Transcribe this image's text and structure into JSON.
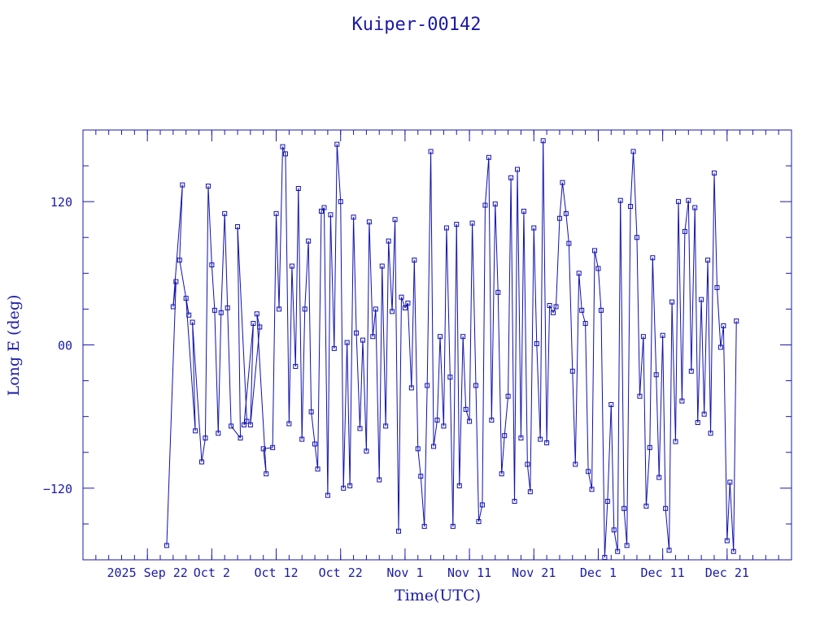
{
  "colors": {
    "axis": "#1a1aa8",
    "series": "#1010b0",
    "background": "#ffffff"
  },
  "chart_data": {
    "type": "scatter",
    "title": "Kuiper-00142",
    "xlabel": "Time(UTC)",
    "ylabel": "Long E (deg)",
    "xlim": [
      "2025-09-12",
      "2025-12-31"
    ],
    "ylim": [
      -180,
      180
    ],
    "grid": false,
    "legend": "none",
    "x_ticks": [
      {
        "date": "2025-09-22",
        "label": "2025 Sep 22"
      },
      {
        "date": "2025-10-02",
        "label": "Oct  2"
      },
      {
        "date": "2025-10-12",
        "label": "Oct 12"
      },
      {
        "date": "2025-10-22",
        "label": "Oct 22"
      },
      {
        "date": "2025-11-01",
        "label": "Nov  1"
      },
      {
        "date": "2025-11-11",
        "label": "Nov 11"
      },
      {
        "date": "2025-11-21",
        "label": "Nov 21"
      },
      {
        "date": "2025-12-01",
        "label": "Dec  1"
      },
      {
        "date": "2025-12-11",
        "label": "Dec 11"
      },
      {
        "date": "2025-12-21",
        "label": "Dec 21"
      }
    ],
    "y_ticks": [
      {
        "value": 120,
        "label": "120"
      },
      {
        "value": 0,
        "label": "00"
      },
      {
        "value": -120,
        "label": "−120"
      }
    ],
    "y_minor_step": 30,
    "series": [
      {
        "marker": "square",
        "line": true,
        "points": [
          {
            "x": "2025-09-25",
            "y": -168
          },
          {
            "x": "2025-09-26",
            "y": 53
          },
          {
            "x": "2025-09-26",
            "y": 32
          },
          {
            "x": "2025-09-27",
            "y": 134
          },
          {
            "x": "2025-09-27",
            "y": 71
          },
          {
            "x": "2025-09-28",
            "y": 25
          },
          {
            "x": "2025-09-28",
            "y": 39
          },
          {
            "x": "2025-09-29",
            "y": -72
          },
          {
            "x": "2025-09-29",
            "y": 19
          },
          {
            "x": "2025-09-30",
            "y": -98
          },
          {
            "x": "2025-10-01",
            "y": -78
          },
          {
            "x": "2025-10-01",
            "y": 133
          },
          {
            "x": "2025-10-02",
            "y": 67
          },
          {
            "x": "2025-10-02",
            "y": 29
          },
          {
            "x": "2025-10-03",
            "y": -74
          },
          {
            "x": "2025-10-03",
            "y": 27
          },
          {
            "x": "2025-10-04",
            "y": 110
          },
          {
            "x": "2025-10-04",
            "y": 31
          },
          {
            "x": "2025-10-05",
            "y": -68
          },
          {
            "x": "2025-10-06",
            "y": -78
          },
          {
            "x": "2025-10-06",
            "y": 99
          },
          {
            "x": "2025-10-07",
            "y": -64
          },
          {
            "x": "2025-10-07",
            "y": -67
          },
          {
            "x": "2025-10-08",
            "y": 18
          },
          {
            "x": "2025-10-08",
            "y": -67
          },
          {
            "x": "2025-10-09",
            "y": 15
          },
          {
            "x": "2025-10-09",
            "y": 26
          },
          {
            "x": "2025-10-10",
            "y": -108
          },
          {
            "x": "2025-10-10",
            "y": -87
          },
          {
            "x": "2025-10-11",
            "y": -86
          },
          {
            "x": "2025-10-12",
            "y": 110
          },
          {
            "x": "2025-10-12",
            "y": 30
          },
          {
            "x": "2025-10-13",
            "y": 166
          },
          {
            "x": "2025-10-13",
            "y": 160
          },
          {
            "x": "2025-10-14",
            "y": -66
          },
          {
            "x": "2025-10-14",
            "y": 66
          },
          {
            "x": "2025-10-15",
            "y": -18
          },
          {
            "x": "2025-10-15",
            "y": 131
          },
          {
            "x": "2025-10-16",
            "y": -79
          },
          {
            "x": "2025-10-16",
            "y": 30
          },
          {
            "x": "2025-10-17",
            "y": 87
          },
          {
            "x": "2025-10-17",
            "y": -56
          },
          {
            "x": "2025-10-18",
            "y": -83
          },
          {
            "x": "2025-10-18",
            "y": -104
          },
          {
            "x": "2025-10-19",
            "y": 112
          },
          {
            "x": "2025-10-19",
            "y": 115
          },
          {
            "x": "2025-10-20",
            "y": -126
          },
          {
            "x": "2025-10-20",
            "y": 109
          },
          {
            "x": "2025-10-21",
            "y": -3
          },
          {
            "x": "2025-10-21",
            "y": 168
          },
          {
            "x": "2025-10-22",
            "y": 120
          },
          {
            "x": "2025-10-22",
            "y": -120
          },
          {
            "x": "2025-10-23",
            "y": 2
          },
          {
            "x": "2025-10-23",
            "y": -118
          },
          {
            "x": "2025-10-24",
            "y": 107
          },
          {
            "x": "2025-10-24",
            "y": 10
          },
          {
            "x": "2025-10-25",
            "y": -70
          },
          {
            "x": "2025-10-25",
            "y": 4
          },
          {
            "x": "2025-10-26",
            "y": -89
          },
          {
            "x": "2025-10-26",
            "y": 103
          },
          {
            "x": "2025-10-27",
            "y": 7
          },
          {
            "x": "2025-10-27",
            "y": 30
          },
          {
            "x": "2025-10-28",
            "y": -113
          },
          {
            "x": "2025-10-28",
            "y": 66
          },
          {
            "x": "2025-10-29",
            "y": -68
          },
          {
            "x": "2025-10-29",
            "y": 87
          },
          {
            "x": "2025-10-30",
            "y": 28
          },
          {
            "x": "2025-10-30",
            "y": 105
          },
          {
            "x": "2025-10-31",
            "y": -156
          },
          {
            "x": "2025-10-31",
            "y": 40
          },
          {
            "x": "2025-11-01",
            "y": 31
          },
          {
            "x": "2025-11-01",
            "y": 35
          },
          {
            "x": "2025-11-02",
            "y": -36
          },
          {
            "x": "2025-11-02",
            "y": 71
          },
          {
            "x": "2025-11-03",
            "y": -87
          },
          {
            "x": "2025-11-03",
            "y": -110
          },
          {
            "x": "2025-11-04",
            "y": -152
          },
          {
            "x": "2025-11-04",
            "y": -34
          },
          {
            "x": "2025-11-05",
            "y": 162
          },
          {
            "x": "2025-11-05",
            "y": -85
          },
          {
            "x": "2025-11-06",
            "y": -63
          },
          {
            "x": "2025-11-06",
            "y": 7
          },
          {
            "x": "2025-11-07",
            "y": -68
          },
          {
            "x": "2025-11-07",
            "y": 98
          },
          {
            "x": "2025-11-08",
            "y": -27
          },
          {
            "x": "2025-11-08",
            "y": -152
          },
          {
            "x": "2025-11-09",
            "y": 101
          },
          {
            "x": "2025-11-09",
            "y": -118
          },
          {
            "x": "2025-11-10",
            "y": 7
          },
          {
            "x": "2025-11-10",
            "y": -54
          },
          {
            "x": "2025-11-11",
            "y": -64
          },
          {
            "x": "2025-11-11",
            "y": 102
          },
          {
            "x": "2025-11-12",
            "y": -34
          },
          {
            "x": "2025-11-12",
            "y": -148
          },
          {
            "x": "2025-11-13",
            "y": -134
          },
          {
            "x": "2025-11-13",
            "y": 117
          },
          {
            "x": "2025-11-14",
            "y": 157
          },
          {
            "x": "2025-11-14",
            "y": -63
          },
          {
            "x": "2025-11-15",
            "y": 118
          },
          {
            "x": "2025-11-15",
            "y": 44
          },
          {
            "x": "2025-11-16",
            "y": -108
          },
          {
            "x": "2025-11-16",
            "y": -76
          },
          {
            "x": "2025-11-17",
            "y": -43
          },
          {
            "x": "2025-11-17",
            "y": 140
          },
          {
            "x": "2025-11-18",
            "y": -131
          },
          {
            "x": "2025-11-18",
            "y": 147
          },
          {
            "x": "2025-11-19",
            "y": -78
          },
          {
            "x": "2025-11-19",
            "y": 112
          },
          {
            "x": "2025-11-20",
            "y": -100
          },
          {
            "x": "2025-11-20",
            "y": -123
          },
          {
            "x": "2025-11-21",
            "y": 98
          },
          {
            "x": "2025-11-21",
            "y": 1
          },
          {
            "x": "2025-11-22",
            "y": -79
          },
          {
            "x": "2025-11-22",
            "y": 171
          },
          {
            "x": "2025-11-23",
            "y": -82
          },
          {
            "x": "2025-11-23",
            "y": 33
          },
          {
            "x": "2025-11-24",
            "y": 27
          },
          {
            "x": "2025-11-24",
            "y": 32
          },
          {
            "x": "2025-11-25",
            "y": 106
          },
          {
            "x": "2025-11-25",
            "y": 136
          },
          {
            "x": "2025-11-26",
            "y": 110
          },
          {
            "x": "2025-11-26",
            "y": 85
          },
          {
            "x": "2025-11-27",
            "y": -22
          },
          {
            "x": "2025-11-27",
            "y": -100
          },
          {
            "x": "2025-11-28",
            "y": 60
          },
          {
            "x": "2025-11-28",
            "y": 29
          },
          {
            "x": "2025-11-29",
            "y": 18
          },
          {
            "x": "2025-11-29",
            "y": -106
          },
          {
            "x": "2025-11-30",
            "y": -121
          },
          {
            "x": "2025-11-30",
            "y": 79
          },
          {
            "x": "2025-12-01",
            "y": 64
          },
          {
            "x": "2025-12-01",
            "y": 29
          },
          {
            "x": "2025-12-02",
            "y": -178
          },
          {
            "x": "2025-12-02",
            "y": -131
          },
          {
            "x": "2025-12-03",
            "y": -50
          },
          {
            "x": "2025-12-03",
            "y": -155
          },
          {
            "x": "2025-12-04",
            "y": -173
          },
          {
            "x": "2025-12-04",
            "y": 121
          },
          {
            "x": "2025-12-05",
            "y": -137
          },
          {
            "x": "2025-12-05",
            "y": -168
          },
          {
            "x": "2025-12-06",
            "y": 116
          },
          {
            "x": "2025-12-06",
            "y": 162
          },
          {
            "x": "2025-12-07",
            "y": 90
          },
          {
            "x": "2025-12-07",
            "y": -43
          },
          {
            "x": "2025-12-08",
            "y": 7
          },
          {
            "x": "2025-12-08",
            "y": -135
          },
          {
            "x": "2025-12-09",
            "y": -86
          },
          {
            "x": "2025-12-09",
            "y": 73
          },
          {
            "x": "2025-12-10",
            "y": -25
          },
          {
            "x": "2025-12-10",
            "y": -111
          },
          {
            "x": "2025-12-11",
            "y": 8
          },
          {
            "x": "2025-12-11",
            "y": -137
          },
          {
            "x": "2025-12-12",
            "y": -172
          },
          {
            "x": "2025-12-12",
            "y": 36
          },
          {
            "x": "2025-12-13",
            "y": -81
          },
          {
            "x": "2025-12-13",
            "y": 120
          },
          {
            "x": "2025-12-14",
            "y": -47
          },
          {
            "x": "2025-12-14",
            "y": 95
          },
          {
            "x": "2025-12-15",
            "y": 121
          },
          {
            "x": "2025-12-15",
            "y": -22
          },
          {
            "x": "2025-12-16",
            "y": 115
          },
          {
            "x": "2025-12-16",
            "y": -65
          },
          {
            "x": "2025-12-17",
            "y": 38
          },
          {
            "x": "2025-12-17",
            "y": -58
          },
          {
            "x": "2025-12-18",
            "y": 71
          },
          {
            "x": "2025-12-18",
            "y": -74
          },
          {
            "x": "2025-12-19",
            "y": 144
          },
          {
            "x": "2025-12-19",
            "y": 48
          },
          {
            "x": "2025-12-20",
            "y": -2
          },
          {
            "x": "2025-12-20",
            "y": 16
          },
          {
            "x": "2025-12-21",
            "y": -164
          },
          {
            "x": "2025-12-21",
            "y": -115
          },
          {
            "x": "2025-12-22",
            "y": -173
          },
          {
            "x": "2025-12-22",
            "y": 20
          }
        ]
      }
    ]
  }
}
